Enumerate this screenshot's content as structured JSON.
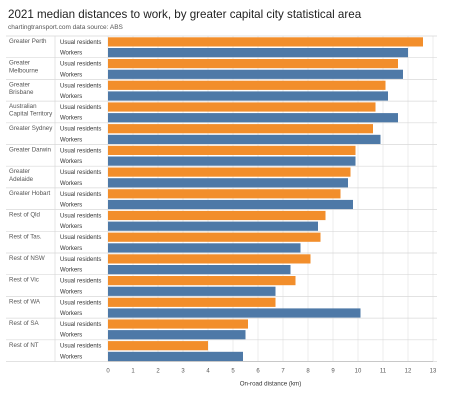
{
  "chart_data": {
    "type": "bar",
    "orientation": "horizontal",
    "title": "2021 median distances to work, by greater capital city statistical area",
    "subtitle": "chartingtransport.com data source: ABS",
    "xlabel": "On-road distance (km)",
    "ylabel": "",
    "xlim": [
      0,
      13
    ],
    "xticks": [
      0,
      1,
      2,
      3,
      4,
      5,
      6,
      7,
      8,
      9,
      10,
      11,
      12,
      13
    ],
    "grid": true,
    "measure_labels": [
      "Usual residents",
      "Workers"
    ],
    "categories": [
      "Greater Perth",
      "Greater Melbourne",
      "Greater Brisbane",
      "Australian Capital Territory",
      "Greater Sydney",
      "Greater Darwin",
      "Greater Adelaide",
      "Greater Hobart",
      "Rest of Qld",
      "Rest of Tas.",
      "Rest of NSW",
      "Rest of Vic",
      "Rest of WA",
      "Rest of SA",
      "Rest of NT"
    ],
    "category_label_lines": [
      [
        "Greater Perth"
      ],
      [
        "Greater",
        "Melbourne"
      ],
      [
        "Greater",
        "Brisbane"
      ],
      [
        "Australian",
        "Capital Territory"
      ],
      [
        "Greater Sydney"
      ],
      [
        "Greater Darwin"
      ],
      [
        "Greater",
        "Adelaide"
      ],
      [
        "Greater Hobart"
      ],
      [
        "Rest of Qld"
      ],
      [
        "Rest of Tas."
      ],
      [
        "Rest of NSW"
      ],
      [
        "Rest of Vic"
      ],
      [
        "Rest of WA"
      ],
      [
        "Rest of SA"
      ],
      [
        "Rest of NT"
      ]
    ],
    "series": [
      {
        "name": "Usual residents",
        "color": "#f28e2b",
        "values": [
          12.6,
          11.6,
          11.1,
          10.7,
          10.6,
          9.9,
          9.7,
          9.3,
          8.7,
          8.5,
          8.1,
          7.5,
          6.7,
          5.6,
          4.0
        ]
      },
      {
        "name": "Workers",
        "color": "#4e79a7",
        "values": [
          12.0,
          11.8,
          11.2,
          11.6,
          10.9,
          9.9,
          9.6,
          9.8,
          8.4,
          7.7,
          7.3,
          6.7,
          10.1,
          5.5,
          5.4
        ]
      }
    ]
  },
  "colors": {
    "grid": "#e8e8e8",
    "row_divider": "#d9d9d9",
    "axis": "#bfbfbf"
  }
}
